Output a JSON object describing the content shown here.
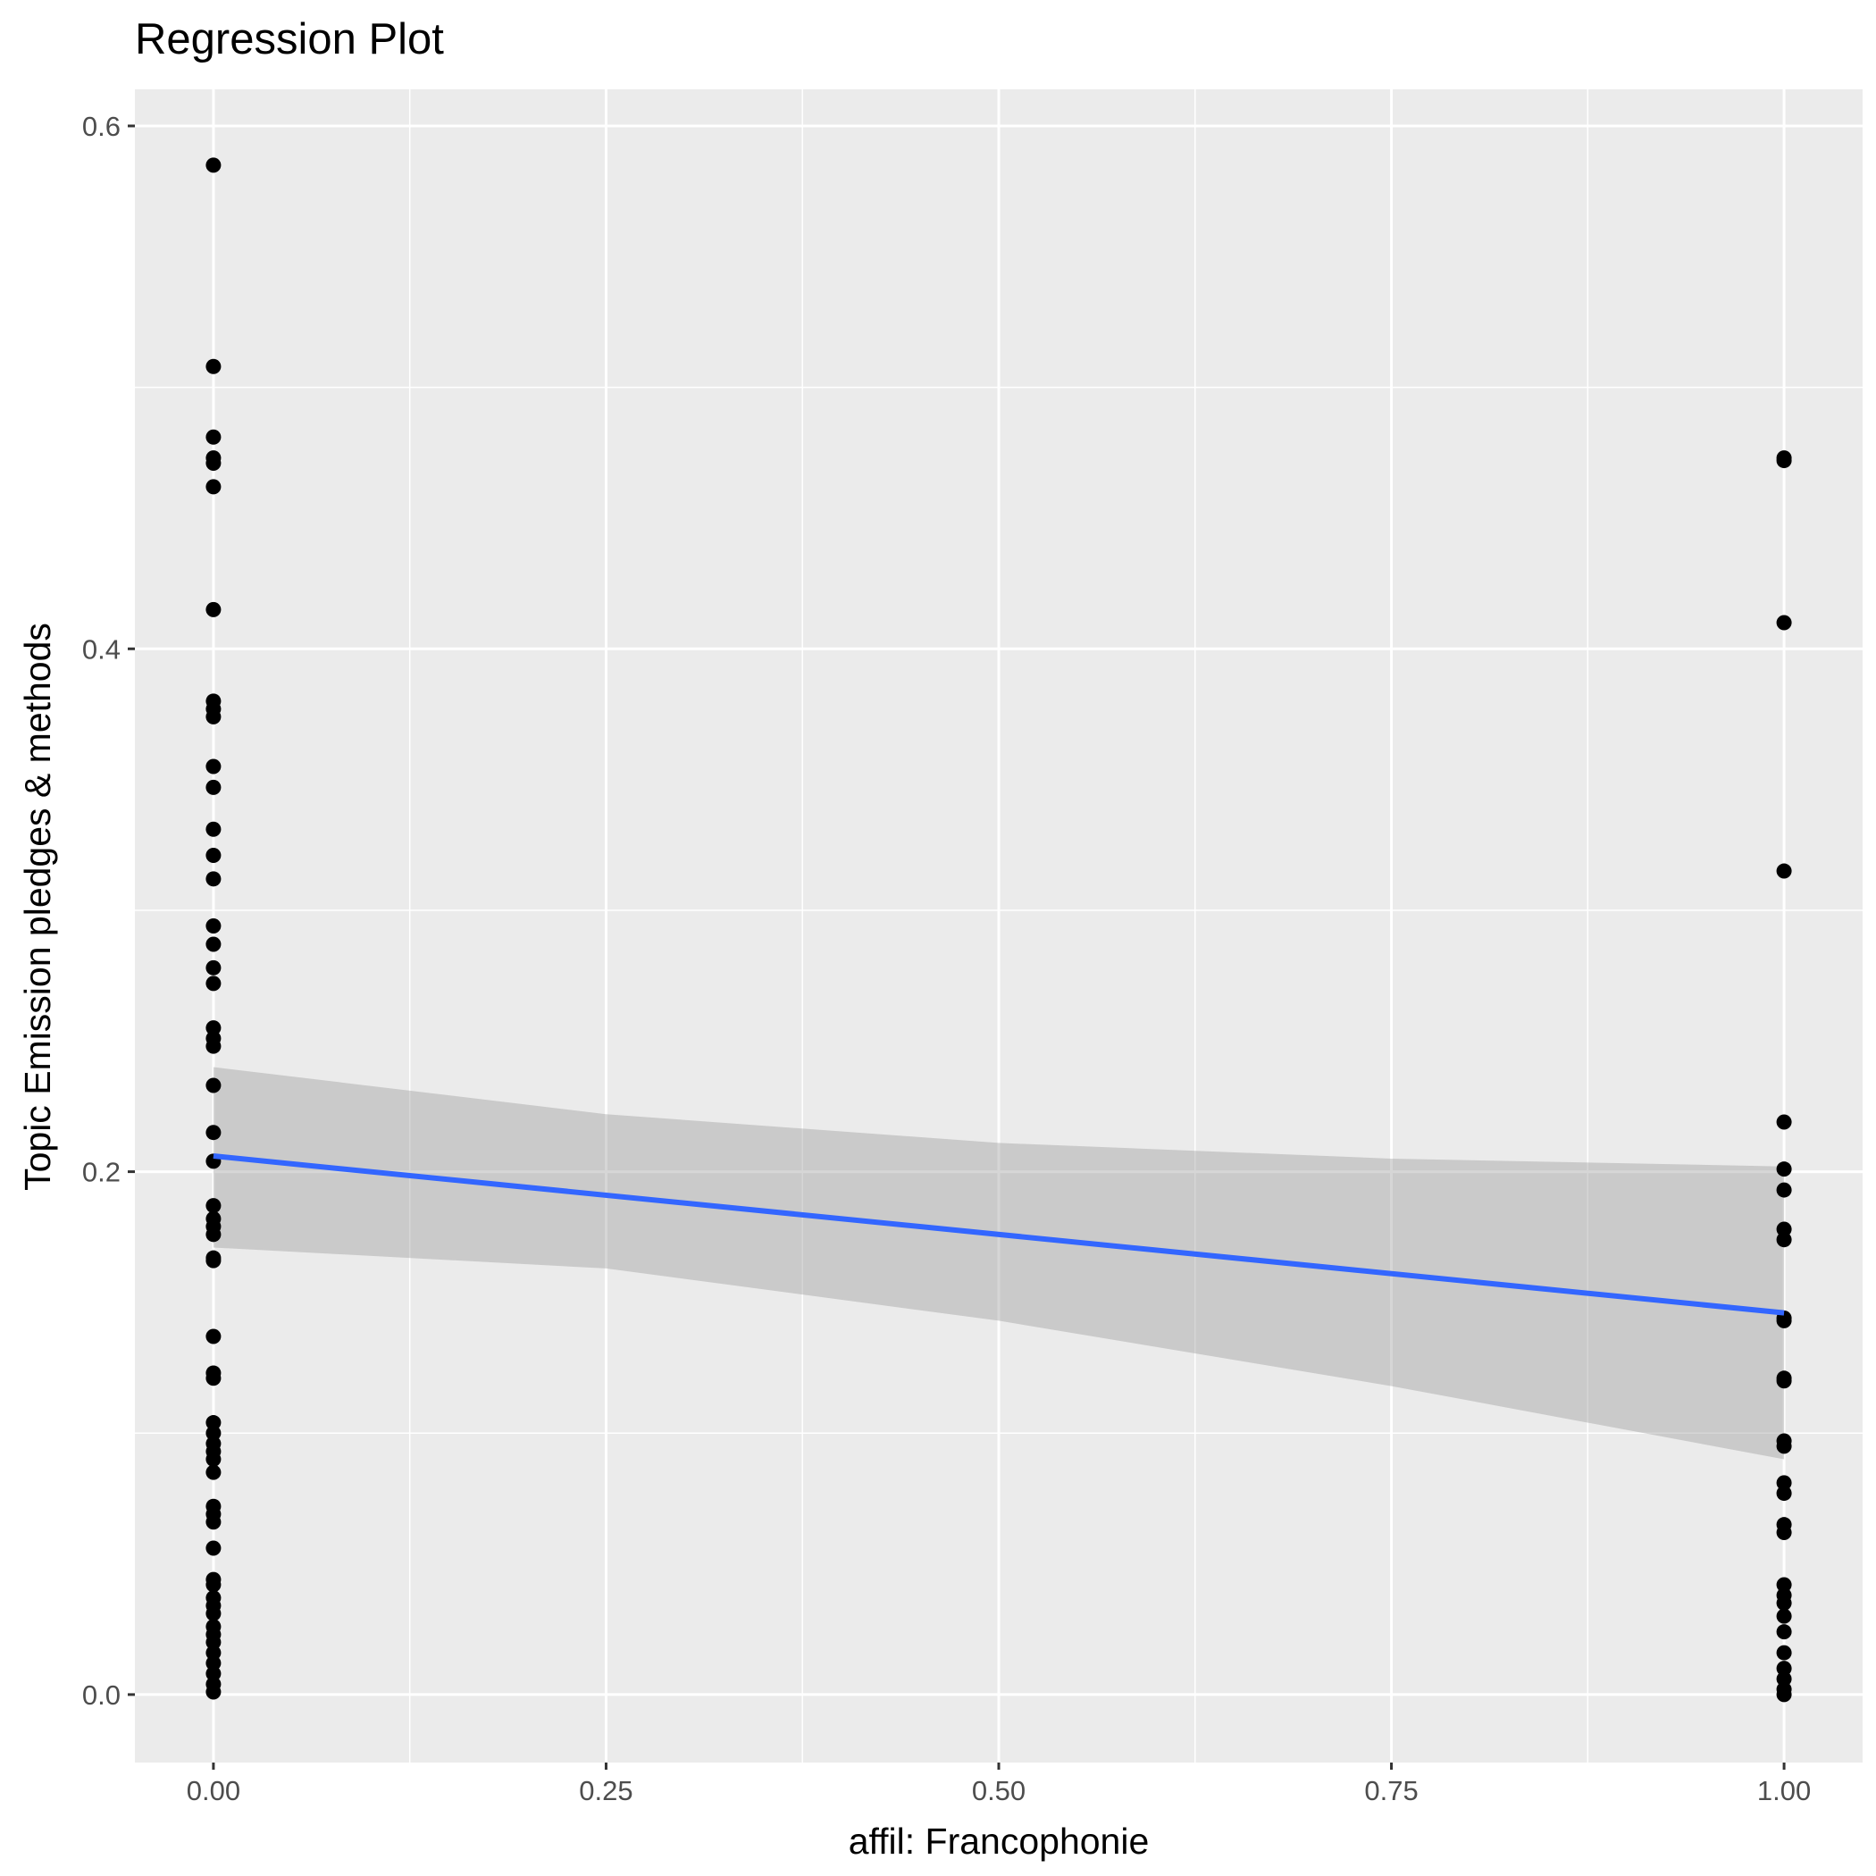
{
  "chart_data": {
    "type": "scatter",
    "title": "Regression Plot",
    "xlabel": "affil: Francophonie",
    "ylabel": "Topic Emission pledges & methods",
    "xlim": [
      -0.05,
      1.05
    ],
    "ylim": [
      -0.026,
      0.614
    ],
    "x_ticks": [
      0,
      0.25,
      0.5,
      0.75,
      1
    ],
    "x_tick_labels": [
      "0.00",
      "0.25",
      "0.50",
      "0.75",
      "1.00"
    ],
    "y_ticks": [
      0,
      0.2,
      0.4,
      0.6
    ],
    "y_tick_labels": [
      "0.0",
      "0.2",
      "0.4",
      "0.6"
    ],
    "grid": true,
    "legend": "none",
    "colors": {
      "panel_background": "#ebebeb",
      "grid_line": "#ffffff",
      "point": "#000000",
      "fit_line": "#3366ff",
      "confidence_band": "#999999"
    },
    "points": [
      {
        "x": 0,
        "y": 0.585
      },
      {
        "x": 0,
        "y": 0.508
      },
      {
        "x": 0,
        "y": 0.481
      },
      {
        "x": 0,
        "y": 0.473
      },
      {
        "x": 0,
        "y": 0.471
      },
      {
        "x": 0,
        "y": 0.462
      },
      {
        "x": 0,
        "y": 0.415
      },
      {
        "x": 0,
        "y": 0.38
      },
      {
        "x": 0,
        "y": 0.377
      },
      {
        "x": 0,
        "y": 0.374
      },
      {
        "x": 0,
        "y": 0.355
      },
      {
        "x": 0,
        "y": 0.347
      },
      {
        "x": 0,
        "y": 0.331
      },
      {
        "x": 0,
        "y": 0.321
      },
      {
        "x": 0,
        "y": 0.312
      },
      {
        "x": 0,
        "y": 0.294
      },
      {
        "x": 0,
        "y": 0.287
      },
      {
        "x": 0,
        "y": 0.278
      },
      {
        "x": 0,
        "y": 0.272
      },
      {
        "x": 0,
        "y": 0.255
      },
      {
        "x": 0,
        "y": 0.251
      },
      {
        "x": 0,
        "y": 0.248
      },
      {
        "x": 0,
        "y": 0.233
      },
      {
        "x": 0,
        "y": 0.215
      },
      {
        "x": 0,
        "y": 0.204
      },
      {
        "x": 0,
        "y": 0.187
      },
      {
        "x": 0,
        "y": 0.182
      },
      {
        "x": 0,
        "y": 0.179
      },
      {
        "x": 0,
        "y": 0.176
      },
      {
        "x": 0,
        "y": 0.167
      },
      {
        "x": 0,
        "y": 0.166
      },
      {
        "x": 0,
        "y": 0.137
      },
      {
        "x": 0,
        "y": 0.123
      },
      {
        "x": 0,
        "y": 0.121
      },
      {
        "x": 0,
        "y": 0.104
      },
      {
        "x": 0,
        "y": 0.1
      },
      {
        "x": 0,
        "y": 0.096
      },
      {
        "x": 0,
        "y": 0.093
      },
      {
        "x": 0,
        "y": 0.09
      },
      {
        "x": 0,
        "y": 0.085
      },
      {
        "x": 0,
        "y": 0.072
      },
      {
        "x": 0,
        "y": 0.069
      },
      {
        "x": 0,
        "y": 0.066
      },
      {
        "x": 0,
        "y": 0.056
      },
      {
        "x": 0,
        "y": 0.044
      },
      {
        "x": 0,
        "y": 0.042
      },
      {
        "x": 0,
        "y": 0.037
      },
      {
        "x": 0,
        "y": 0.034
      },
      {
        "x": 0,
        "y": 0.031
      },
      {
        "x": 0,
        "y": 0.026
      },
      {
        "x": 0,
        "y": 0.023
      },
      {
        "x": 0,
        "y": 0.02
      },
      {
        "x": 0,
        "y": 0.016
      },
      {
        "x": 0,
        "y": 0.012
      },
      {
        "x": 0,
        "y": 0.008
      },
      {
        "x": 0,
        "y": 0.004
      },
      {
        "x": 0,
        "y": 0.001
      },
      {
        "x": 1,
        "y": 0.473
      },
      {
        "x": 1,
        "y": 0.472
      },
      {
        "x": 1,
        "y": 0.41
      },
      {
        "x": 1,
        "y": 0.315
      },
      {
        "x": 1,
        "y": 0.219
      },
      {
        "x": 1,
        "y": 0.201
      },
      {
        "x": 1,
        "y": 0.193
      },
      {
        "x": 1,
        "y": 0.178
      },
      {
        "x": 1,
        "y": 0.174
      },
      {
        "x": 1,
        "y": 0.144
      },
      {
        "x": 1,
        "y": 0.143
      },
      {
        "x": 1,
        "y": 0.121
      },
      {
        "x": 1,
        "y": 0.12
      },
      {
        "x": 1,
        "y": 0.097
      },
      {
        "x": 1,
        "y": 0.095
      },
      {
        "x": 1,
        "y": 0.081
      },
      {
        "x": 1,
        "y": 0.077
      },
      {
        "x": 1,
        "y": 0.065
      },
      {
        "x": 1,
        "y": 0.062
      },
      {
        "x": 1,
        "y": 0.042
      },
      {
        "x": 1,
        "y": 0.038
      },
      {
        "x": 1,
        "y": 0.035
      },
      {
        "x": 1,
        "y": 0.03
      },
      {
        "x": 1,
        "y": 0.024
      },
      {
        "x": 1,
        "y": 0.016
      },
      {
        "x": 1,
        "y": 0.01
      },
      {
        "x": 1,
        "y": 0.006
      },
      {
        "x": 1,
        "y": 0.002
      },
      {
        "x": 1,
        "y": 0.0
      }
    ],
    "regression_line": {
      "x": [
        0,
        1
      ],
      "y": [
        0.206,
        0.146
      ]
    },
    "confidence_band": {
      "x": [
        0,
        0.25,
        0.5,
        0.75,
        1
      ],
      "upper": [
        0.24,
        0.222,
        0.211,
        0.205,
        0.202
      ],
      "lower": [
        0.171,
        0.163,
        0.143,
        0.118,
        0.09
      ]
    }
  }
}
